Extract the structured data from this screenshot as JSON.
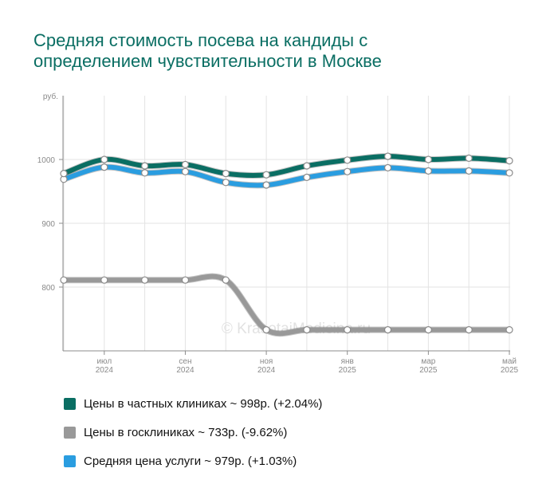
{
  "chart_data": {
    "type": "line",
    "title_lines": [
      "Средняя стоимость посева на кандиды с",
      "определением чувствительности в Москве"
    ],
    "yunit": "руб.",
    "ylim": [
      700,
      1100
    ],
    "yticks": [
      800,
      900,
      1000
    ],
    "x_count": 12,
    "x_tick_labels": [
      {
        "index": 1,
        "month": "июл",
        "year": "2024"
      },
      {
        "index": 3,
        "month": "сен",
        "year": "2024"
      },
      {
        "index": 5,
        "month": "ноя",
        "year": "2024"
      },
      {
        "index": 7,
        "month": "янв",
        "year": "2025"
      },
      {
        "index": 9,
        "month": "мар",
        "year": "2025"
      },
      {
        "index": 11,
        "month": "май",
        "year": "2025"
      }
    ],
    "grid": true,
    "series": [
      {
        "name": "Цены в госклиниках",
        "color": "#999999",
        "values": [
          811,
          811,
          811,
          811,
          811,
          733,
          733,
          733,
          733,
          733,
          733,
          733
        ]
      },
      {
        "name": "Средняя цена услуги",
        "color": "#2a9de0",
        "values": [
          969,
          988,
          979,
          981,
          964,
          960,
          972,
          981,
          987,
          982,
          982,
          979
        ]
      },
      {
        "name": "Цены в частных клиниках",
        "color": "#0a6e63",
        "values": [
          978,
          1000,
          990,
          992,
          978,
          976,
          990,
          999,
          1005,
          1000,
          1002,
          998
        ]
      }
    ],
    "watermark": "© KrasotaiMedicina.ru"
  },
  "legend": [
    {
      "label": "Цены в частных клиниках ~ 998р. (+2.04%)",
      "color": "#0a6e63"
    },
    {
      "label": "Цены в госклиниках ~ 733р. (-9.62%)",
      "color": "#999999"
    },
    {
      "label": "Средняя цена услуги ~ 979р. (+1.03%)",
      "color": "#2a9de0"
    }
  ]
}
